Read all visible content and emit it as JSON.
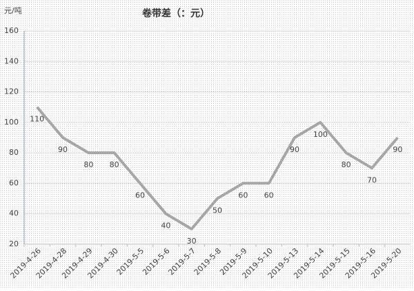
{
  "chart_data": {
    "type": "line",
    "title": "卷带差（：元）",
    "y_label": "元/吨",
    "categories": [
      "2019-4-26",
      "2019-4-28",
      "2019-4-29",
      "2019-4-30",
      "2019-5-5",
      "2019-5-6",
      "2019-5-7",
      "2019-5-8",
      "2019-5-9",
      "2019-5-10",
      "2019-5-13",
      "2019-5-14",
      "2019-5-15",
      "2019-5-16",
      "2019-5-20"
    ],
    "series": [
      {
        "name": "卷带差",
        "color": "#a6a6a6",
        "values": [
          110,
          90,
          80,
          80,
          60,
          40,
          30,
          50,
          60,
          60,
          90,
          100,
          80,
          70,
          90
        ]
      }
    ],
    "ylim": [
      20,
      160
    ],
    "yticks": [
      20,
      40,
      60,
      80,
      100,
      120,
      140,
      160
    ],
    "grid": true
  }
}
